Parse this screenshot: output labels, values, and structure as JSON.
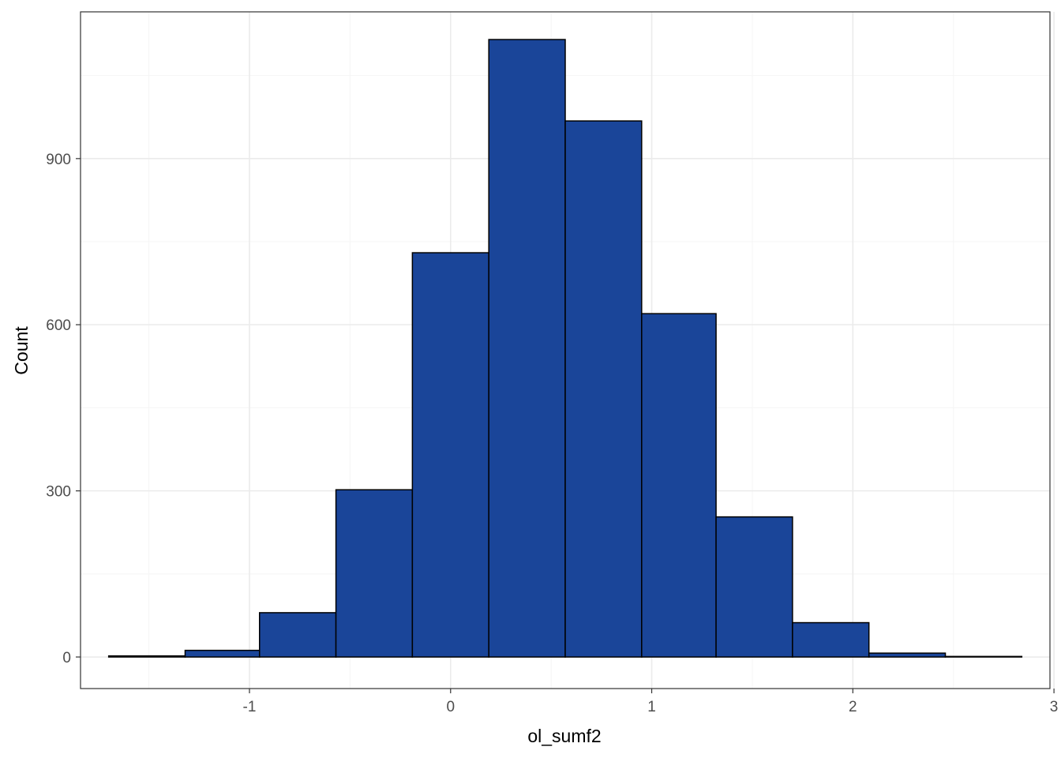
{
  "chart_data": {
    "type": "bar",
    "subtype": "histogram",
    "title": "",
    "xlabel": "ol_sumf2",
    "ylabel": "Count",
    "xlim": [
      -1.84,
      2.98
    ],
    "ylim": [
      -57,
      1165
    ],
    "x_ticks": [
      -1,
      0,
      1,
      2,
      3
    ],
    "x_tick_labels": [
      "-1",
      "0",
      "1",
      "2",
      "3"
    ],
    "y_ticks": [
      0,
      300,
      600,
      900
    ],
    "y_tick_labels": [
      "0",
      "300",
      "600",
      "900"
    ],
    "x_minor_gridlines": [
      -1.5,
      -0.5,
      0.5,
      1.5,
      2.5
    ],
    "y_minor_gridlines": [
      150,
      450,
      750,
      1050
    ],
    "grid": true,
    "bin_width": 0.378,
    "bins": [
      {
        "x0": -1.7,
        "x1": -1.32,
        "count": 2
      },
      {
        "x0": -1.32,
        "x1": -0.95,
        "count": 12
      },
      {
        "x0": -0.95,
        "x1": -0.57,
        "count": 80
      },
      {
        "x0": -0.57,
        "x1": -0.19,
        "count": 302
      },
      {
        "x0": -0.19,
        "x1": 0.19,
        "count": 730
      },
      {
        "x0": 0.19,
        "x1": 0.57,
        "count": 1115
      },
      {
        "x0": 0.57,
        "x1": 0.95,
        "count": 968
      },
      {
        "x0": 0.95,
        "x1": 1.32,
        "count": 620
      },
      {
        "x0": 1.32,
        "x1": 1.7,
        "count": 253
      },
      {
        "x0": 1.7,
        "x1": 2.08,
        "count": 62
      },
      {
        "x0": 2.08,
        "x1": 2.46,
        "count": 7
      },
      {
        "x0": 2.46,
        "x1": 2.84,
        "count": 1
      }
    ],
    "colors": {
      "bar_fill": "#1a4599",
      "bar_outline": "#000000",
      "panel_border": "#333333",
      "grid_major": "#ebebeb",
      "grid_minor": "#f5f5f5",
      "tick_text": "#4d4d4d",
      "axis_title": "#000000"
    }
  }
}
